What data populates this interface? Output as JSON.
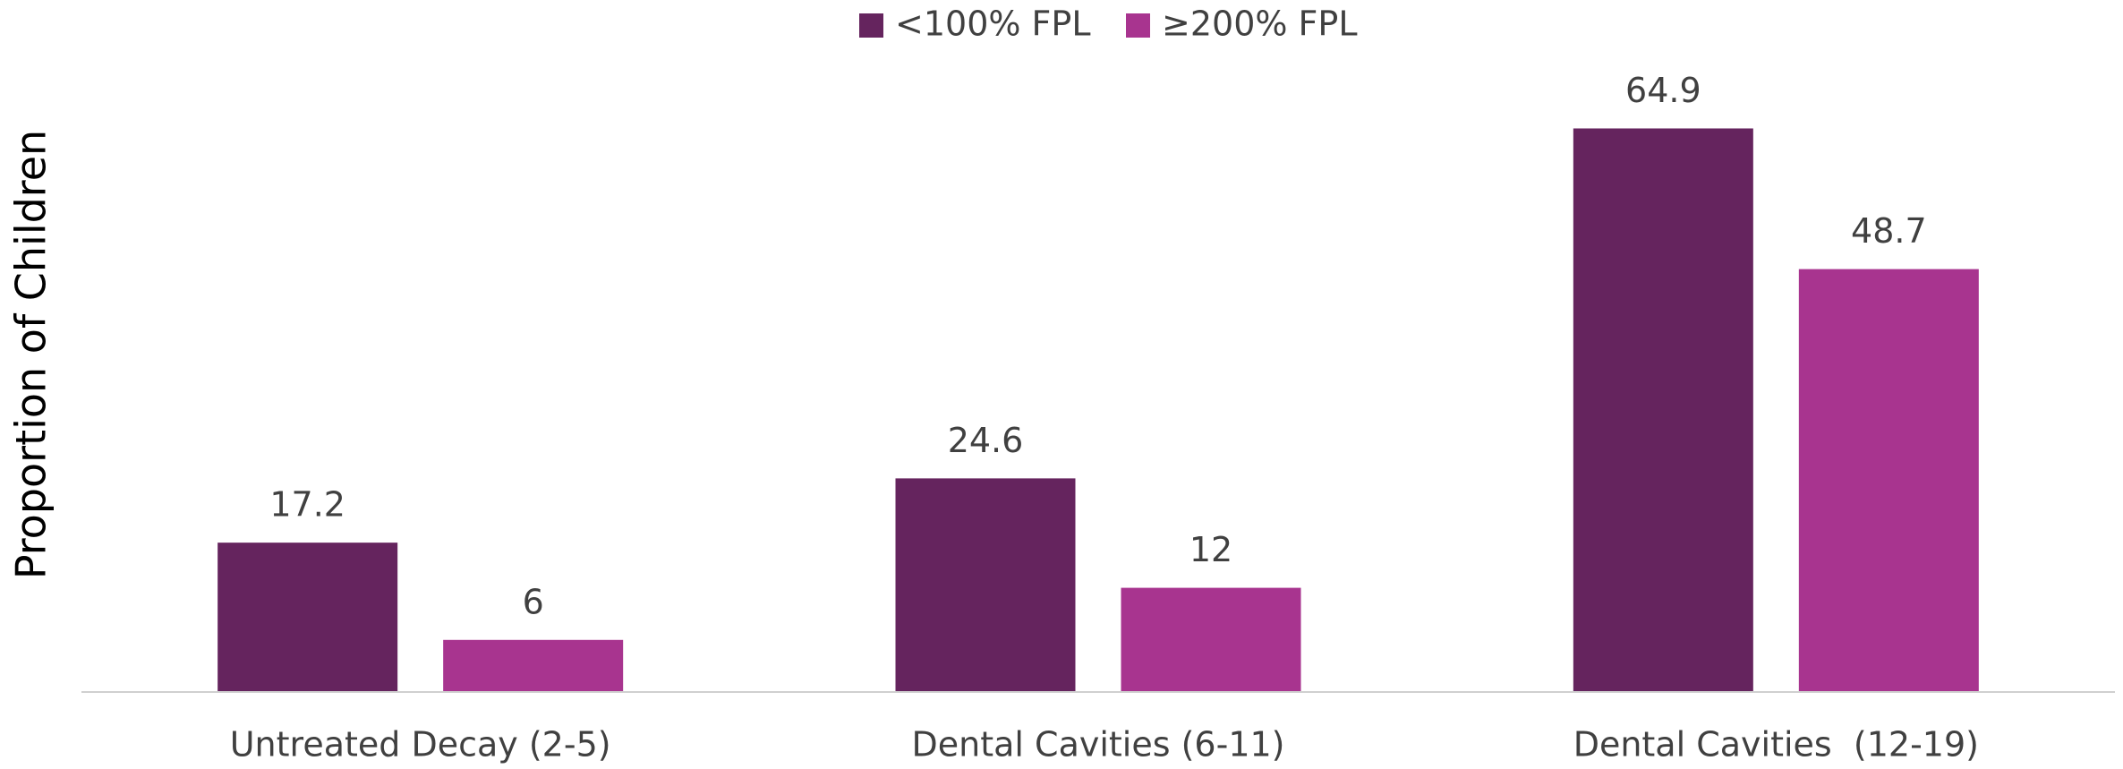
{
  "chart_data": {
    "type": "bar",
    "y_label": "Proportion of Children",
    "categories": [
      "Untreated Decay (2-5)",
      "Dental Cavities (6-11)",
      "Dental Cavities  (12-19)"
    ],
    "series": [
      {
        "name": "<100% FPL",
        "color": "#65245e",
        "values": [
          17.2,
          24.6,
          64.9
        ]
      },
      {
        "name": "≥200% FPL",
        "color": "#a8348f",
        "values": [
          6,
          12,
          48.7
        ]
      }
    ],
    "ylim": [
      0,
      70
    ],
    "legend": "top"
  }
}
